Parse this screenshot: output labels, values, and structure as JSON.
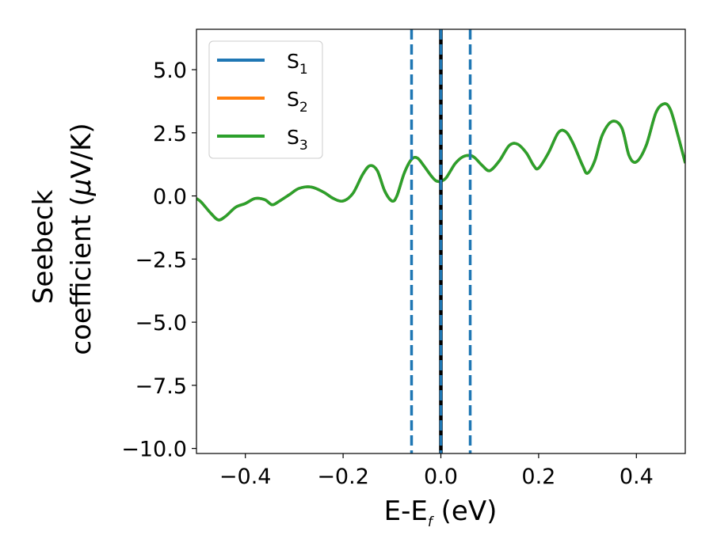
{
  "chart_data": {
    "type": "line",
    "title": "",
    "xlabel": "E-E",
    "xlabel_sub": "f",
    "xlabel_unit": " (eV)",
    "ylabel_line1": "Seebeck",
    "ylabel_line2": "coefficient  (",
    "ylabel_mu": "μ",
    "ylabel_unit": "V/K)",
    "xlim": [
      -0.5,
      0.5
    ],
    "ylim": [
      -10.2,
      6.6
    ],
    "xticks": [
      -0.4,
      -0.2,
      0.0,
      0.2,
      0.4
    ],
    "xtick_labels": [
      "−0.4",
      "−0.2",
      "0.0",
      "0.2",
      "0.4"
    ],
    "yticks": [
      5.0,
      2.5,
      0.0,
      -2.5,
      -5.0,
      -7.5,
      -10.0
    ],
    "ytick_labels": [
      "5.0",
      "2.5",
      "0.0",
      "−2.5",
      "−5.0",
      "−7.5",
      "−10.0"
    ],
    "grid": false,
    "legend_position": "top-left",
    "series": [
      {
        "name": "S",
        "subscript": "1",
        "color": "#1f77b4",
        "x": [
          -0.5,
          -0.49,
          -0.47,
          -0.455,
          -0.44,
          -0.42,
          -0.4,
          -0.38,
          -0.36,
          -0.345,
          -0.33,
          -0.31,
          -0.29,
          -0.265,
          -0.24,
          -0.22,
          -0.2,
          -0.18,
          -0.16,
          -0.145,
          -0.13,
          -0.115,
          -0.1,
          -0.09,
          -0.075,
          -0.06,
          -0.048,
          -0.035,
          -0.02,
          -0.01,
          0.0,
          0.01,
          0.02,
          0.03,
          0.045,
          0.06,
          0.07,
          0.085,
          0.1,
          0.12,
          0.14,
          0.157,
          0.175,
          0.19,
          0.2,
          0.22,
          0.24,
          0.255,
          0.27,
          0.29,
          0.3,
          0.315,
          0.33,
          0.35,
          0.37,
          0.385,
          0.4,
          0.42,
          0.44,
          0.457,
          0.47,
          0.485,
          0.5
        ],
        "y": [
          -0.1,
          -0.25,
          -0.7,
          -0.95,
          -0.8,
          -0.45,
          -0.3,
          -0.1,
          -0.15,
          -0.35,
          -0.2,
          0.05,
          0.3,
          0.35,
          0.15,
          -0.1,
          -0.2,
          0.1,
          0.85,
          1.2,
          1.0,
          0.2,
          -0.2,
          0.0,
          0.9,
          1.45,
          1.5,
          1.2,
          0.8,
          0.6,
          0.58,
          0.7,
          1.0,
          1.3,
          1.55,
          1.6,
          1.5,
          1.2,
          1.0,
          1.4,
          2.0,
          2.05,
          1.7,
          1.2,
          1.1,
          1.7,
          2.5,
          2.55,
          2.1,
          1.2,
          0.9,
          1.4,
          2.4,
          2.95,
          2.7,
          1.6,
          1.35,
          2.0,
          3.3,
          3.65,
          3.4,
          2.4,
          1.3
        ]
      },
      {
        "name": "S",
        "subscript": "2",
        "color": "#ff7f0e",
        "x": [
          -0.5,
          -0.49,
          -0.47,
          -0.455,
          -0.44,
          -0.42,
          -0.4,
          -0.38,
          -0.36,
          -0.345,
          -0.33,
          -0.31,
          -0.29,
          -0.265,
          -0.24,
          -0.22,
          -0.2,
          -0.18,
          -0.16,
          -0.145,
          -0.13,
          -0.115,
          -0.1,
          -0.09,
          -0.075,
          -0.06,
          -0.048,
          -0.035,
          -0.02,
          -0.01,
          0.0,
          0.01,
          0.02,
          0.03,
          0.045,
          0.06,
          0.07,
          0.085,
          0.1,
          0.12,
          0.14,
          0.157,
          0.175,
          0.19,
          0.2,
          0.22,
          0.24,
          0.255,
          0.27,
          0.29,
          0.3,
          0.315,
          0.33,
          0.35,
          0.37,
          0.385,
          0.4,
          0.42,
          0.44,
          0.457,
          0.47,
          0.485,
          0.5
        ],
        "y": [
          -0.1,
          -0.25,
          -0.7,
          -0.95,
          -0.8,
          -0.45,
          -0.3,
          -0.1,
          -0.15,
          -0.35,
          -0.2,
          0.05,
          0.3,
          0.35,
          0.15,
          -0.1,
          -0.2,
          0.1,
          0.85,
          1.2,
          1.0,
          0.2,
          -0.2,
          0.0,
          0.9,
          1.45,
          1.5,
          1.2,
          0.8,
          0.6,
          0.58,
          0.7,
          1.0,
          1.3,
          1.55,
          1.6,
          1.5,
          1.2,
          1.0,
          1.4,
          2.0,
          2.05,
          1.7,
          1.2,
          1.1,
          1.7,
          2.5,
          2.55,
          2.1,
          1.2,
          0.9,
          1.4,
          2.4,
          2.95,
          2.7,
          1.6,
          1.35,
          2.0,
          3.3,
          3.65,
          3.4,
          2.4,
          1.3
        ]
      },
      {
        "name": "S",
        "subscript": "3",
        "color": "#2ca02c",
        "x": [
          -0.5,
          -0.49,
          -0.47,
          -0.455,
          -0.44,
          -0.42,
          -0.4,
          -0.38,
          -0.36,
          -0.345,
          -0.33,
          -0.31,
          -0.29,
          -0.265,
          -0.24,
          -0.22,
          -0.2,
          -0.18,
          -0.16,
          -0.145,
          -0.13,
          -0.115,
          -0.1,
          -0.09,
          -0.075,
          -0.06,
          -0.048,
          -0.035,
          -0.02,
          -0.01,
          0.0,
          0.01,
          0.02,
          0.03,
          0.045,
          0.06,
          0.07,
          0.085,
          0.1,
          0.12,
          0.14,
          0.157,
          0.175,
          0.19,
          0.2,
          0.22,
          0.24,
          0.255,
          0.27,
          0.29,
          0.3,
          0.315,
          0.33,
          0.35,
          0.37,
          0.385,
          0.4,
          0.42,
          0.44,
          0.457,
          0.47,
          0.485,
          0.5
        ],
        "y": [
          -0.1,
          -0.25,
          -0.7,
          -0.95,
          -0.8,
          -0.45,
          -0.3,
          -0.1,
          -0.15,
          -0.35,
          -0.2,
          0.05,
          0.3,
          0.35,
          0.15,
          -0.1,
          -0.2,
          0.1,
          0.85,
          1.2,
          1.0,
          0.2,
          -0.2,
          0.0,
          0.9,
          1.45,
          1.5,
          1.2,
          0.8,
          0.6,
          0.58,
          0.7,
          1.0,
          1.3,
          1.55,
          1.6,
          1.5,
          1.2,
          1.0,
          1.4,
          2.0,
          2.05,
          1.7,
          1.2,
          1.1,
          1.7,
          2.5,
          2.55,
          2.1,
          1.2,
          0.9,
          1.4,
          2.4,
          2.95,
          2.7,
          1.6,
          1.35,
          2.0,
          3.3,
          3.65,
          3.4,
          2.4,
          1.3
        ]
      }
    ],
    "vertical_lines": [
      {
        "x": -0.06,
        "color": "#1f77b4",
        "style": "dashed"
      },
      {
        "x": 0.0,
        "color": "#000000",
        "style": "solid"
      },
      {
        "x": 0.0,
        "color": "#1f77b4",
        "style": "dashed"
      },
      {
        "x": 0.06,
        "color": "#1f77b4",
        "style": "dashed"
      }
    ]
  }
}
